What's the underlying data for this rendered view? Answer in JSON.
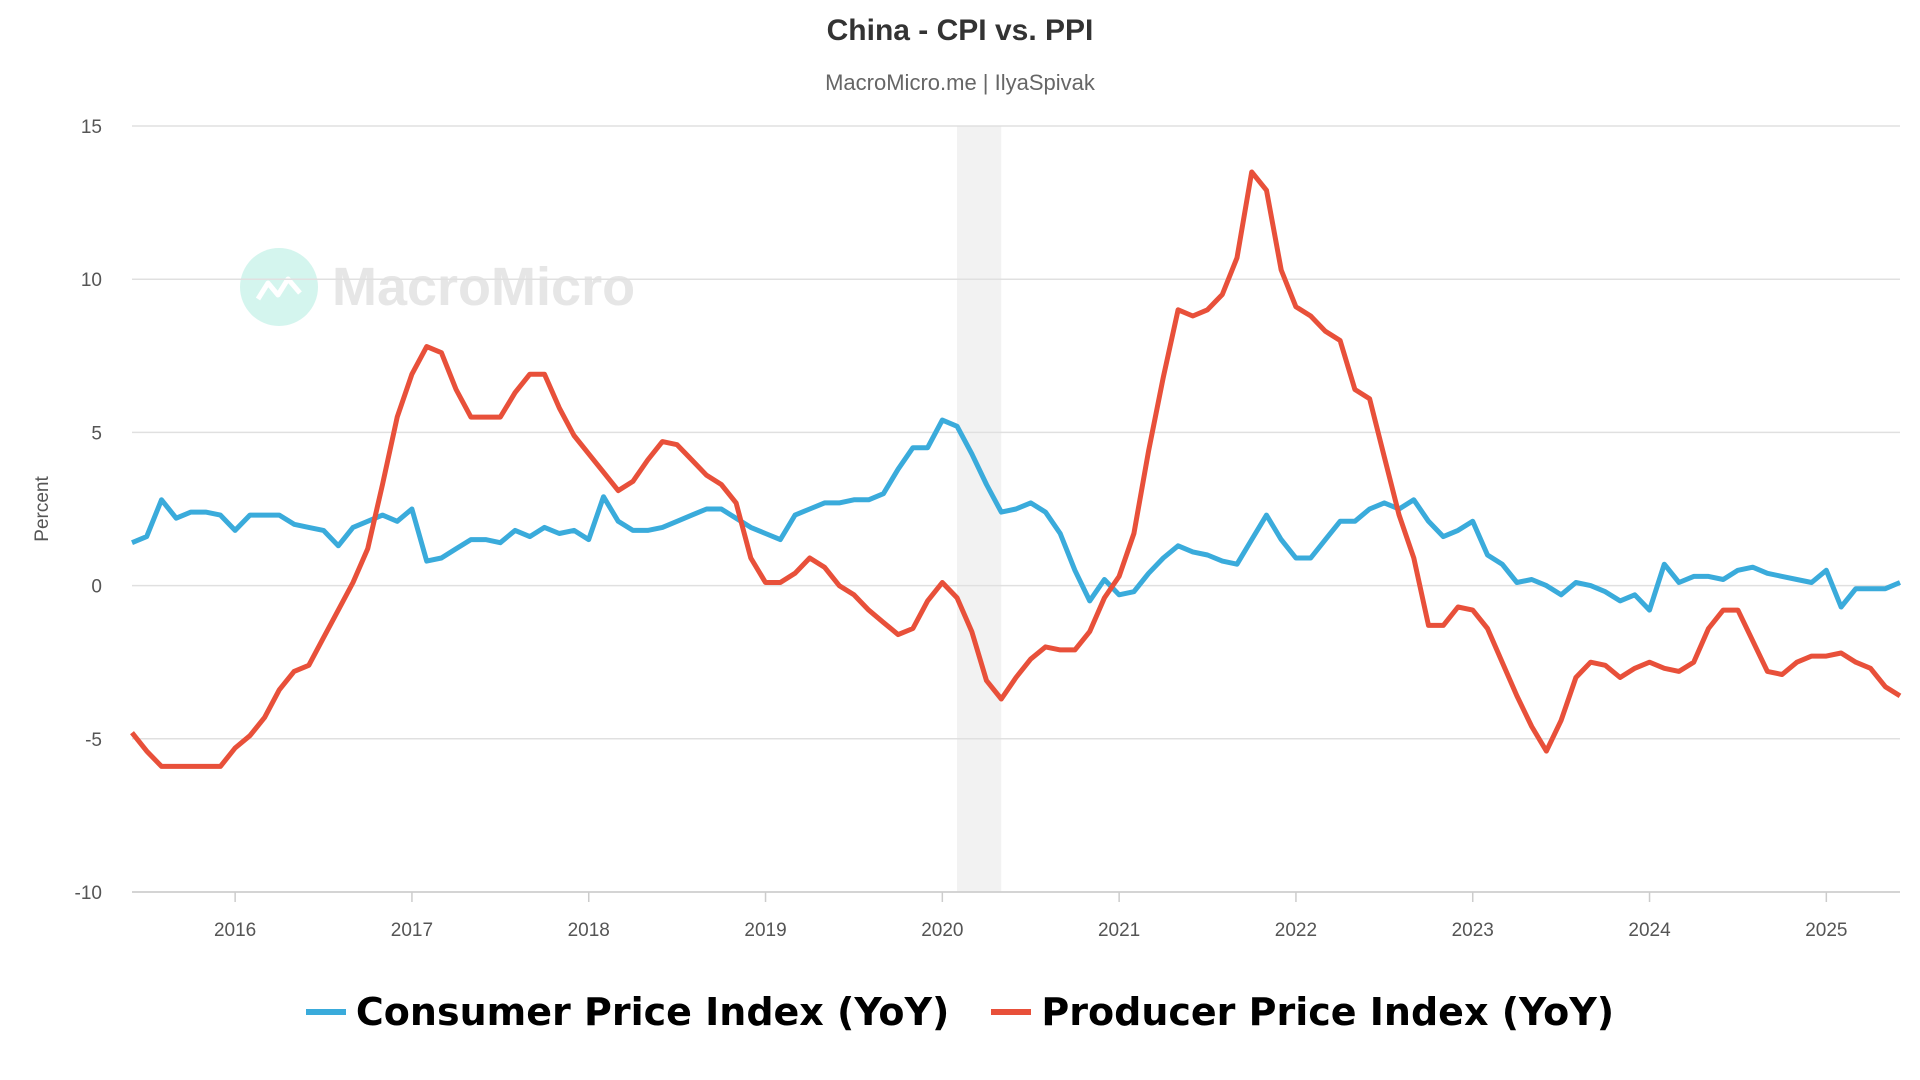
{
  "chart_data": {
    "type": "line",
    "title": "China - CPI vs. PPI",
    "subtitle": "MacroMicro.me | IlyaSpivak",
    "watermark": "MacroMicro",
    "ylabel": "Percent",
    "xlabel": "",
    "ylim": [
      -10,
      15
    ],
    "yticks": [
      "15",
      "10",
      "5",
      "0",
      "-5",
      "-10"
    ],
    "xticks": [
      "2016",
      "2017",
      "2018",
      "2019",
      "2020",
      "2021",
      "2022",
      "2023",
      "2024",
      "2025"
    ],
    "grid": true,
    "legend_position": "bottom",
    "shaded_range": [
      "2020-02",
      "2020-05"
    ],
    "start": "2015-06",
    "frequency": "monthly",
    "series": [
      {
        "name": "Consumer Price Index (YoY)",
        "color": "#3aabdb",
        "values": [
          1.4,
          1.6,
          2.8,
          2.2,
          2.4,
          2.4,
          2.3,
          1.8,
          2.3,
          2.3,
          2.3,
          2.0,
          1.9,
          1.8,
          1.3,
          1.9,
          2.1,
          2.3,
          2.1,
          2.5,
          0.8,
          0.9,
          1.2,
          1.5,
          1.5,
          1.4,
          1.8,
          1.6,
          1.9,
          1.7,
          1.8,
          1.5,
          2.9,
          2.1,
          1.8,
          1.8,
          1.9,
          2.1,
          2.3,
          2.5,
          2.5,
          2.2,
          1.9,
          1.7,
          1.5,
          2.3,
          2.5,
          2.7,
          2.7,
          2.8,
          2.8,
          3.0,
          3.8,
          4.5,
          4.5,
          5.4,
          5.2,
          4.3,
          3.3,
          2.4,
          2.5,
          2.7,
          2.4,
          1.7,
          0.5,
          -0.5,
          0.2,
          -0.3,
          -0.2,
          0.4,
          0.9,
          1.3,
          1.1,
          1.0,
          0.8,
          0.7,
          1.5,
          2.3,
          1.5,
          0.9,
          0.9,
          1.5,
          2.1,
          2.1,
          2.5,
          2.7,
          2.5,
          2.8,
          2.1,
          1.6,
          1.8,
          2.1,
          1.0,
          0.7,
          0.1,
          0.2,
          0.0,
          -0.3,
          0.1,
          0.0,
          -0.2,
          -0.5,
          -0.3,
          -0.8,
          0.7,
          0.1,
          0.3,
          0.3,
          0.2,
          0.5,
          0.6,
          0.4,
          0.3,
          0.2,
          0.1,
          0.5,
          -0.7,
          -0.1,
          -0.1,
          -0.1,
          0.1
        ]
      },
      {
        "name": "Producer Price Index (YoY)",
        "color": "#e8503a",
        "values": [
          -4.8,
          -5.4,
          -5.9,
          -5.9,
          -5.9,
          -5.9,
          -5.9,
          -5.3,
          -4.9,
          -4.3,
          -3.4,
          -2.8,
          -2.6,
          -1.7,
          -0.8,
          0.1,
          1.2,
          3.3,
          5.5,
          6.9,
          7.8,
          7.6,
          6.4,
          5.5,
          5.5,
          5.5,
          6.3,
          6.9,
          6.9,
          5.8,
          4.9,
          4.3,
          3.7,
          3.1,
          3.4,
          4.1,
          4.7,
          4.6,
          4.1,
          3.6,
          3.3,
          2.7,
          0.9,
          0.1,
          0.1,
          0.4,
          0.9,
          0.6,
          0.0,
          -0.3,
          -0.8,
          -1.2,
          -1.6,
          -1.4,
          -0.5,
          0.1,
          -0.4,
          -1.5,
          -3.1,
          -3.7,
          -3.0,
          -2.4,
          -2.0,
          -2.1,
          -2.1,
          -1.5,
          -0.4,
          0.3,
          1.7,
          4.4,
          6.8,
          9.0,
          8.8,
          9.0,
          9.5,
          10.7,
          13.5,
          12.9,
          10.3,
          9.1,
          8.8,
          8.3,
          8.0,
          6.4,
          6.1,
          4.2,
          2.3,
          0.9,
          -1.3,
          -1.3,
          -0.7,
          -0.8,
          -1.4,
          -2.5,
          -3.6,
          -4.6,
          -5.4,
          -4.4,
          -3.0,
          -2.5,
          -2.6,
          -3.0,
          -2.7,
          -2.5,
          -2.7,
          -2.8,
          -2.5,
          -1.4,
          -0.8,
          -0.8,
          -1.8,
          -2.8,
          -2.9,
          -2.5,
          -2.3,
          -2.3,
          -2.2,
          -2.5,
          -2.7,
          -3.3,
          -3.6
        ]
      }
    ]
  }
}
